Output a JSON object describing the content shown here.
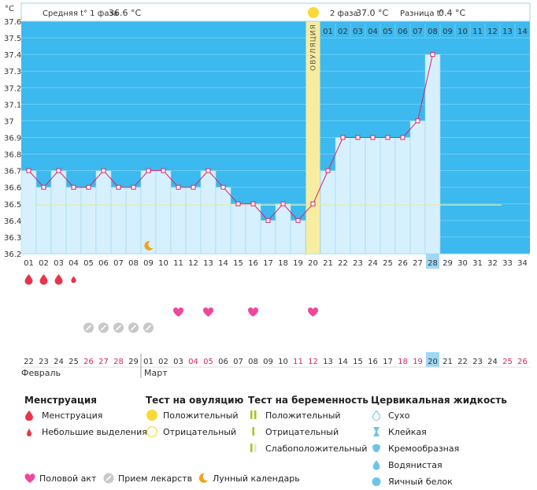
{
  "chart_data": {
    "type": "line",
    "unit_label": "°C",
    "ylim": [
      36.2,
      37.6
    ],
    "yticks": [
      "37.6",
      "37.5",
      "37.4",
      "37.3",
      "37.2",
      "37.1",
      "37",
      "36.9",
      "36.8",
      "36.7",
      "36.6",
      "36.5",
      "36.4",
      "36.3",
      "36.2"
    ],
    "cycle_days": [
      "01",
      "02",
      "03",
      "04",
      "05",
      "06",
      "07",
      "08",
      "09",
      "10",
      "11",
      "12",
      "13",
      "14",
      "15",
      "16",
      "17",
      "18",
      "19",
      "20",
      "21",
      "22",
      "23",
      "24",
      "25",
      "26",
      "27",
      "28",
      "29",
      "30",
      "31",
      "32",
      "33",
      "34"
    ],
    "today_cycle_day": "28",
    "temperatures": [
      36.7,
      36.6,
      36.7,
      36.6,
      36.6,
      36.7,
      36.6,
      36.6,
      36.7,
      36.7,
      36.6,
      36.6,
      36.7,
      36.6,
      36.5,
      36.5,
      36.4,
      36.5,
      36.4,
      36.5,
      36.7,
      36.9,
      36.9,
      36.9,
      36.9,
      36.9,
      37.0,
      37.4
    ],
    "ovulation_day": 20,
    "ovulation_label": "ОВУЛЯЦИЯ",
    "coverline": 36.5,
    "phase1_label": "Средняя t° 1 фаза",
    "phase1_value": "36.6 °C",
    "phase2_label": "2 фаза",
    "phase2_value": "37.0 °C",
    "diff_label": "Разница t°",
    "diff_value": "0.4 °C",
    "luteal_days": [
      "01",
      "02",
      "03",
      "04",
      "05",
      "06",
      "07",
      "08",
      "09",
      "10",
      "11",
      "12",
      "13",
      "14"
    ],
    "dates": [
      "22",
      "23",
      "24",
      "25",
      "26",
      "27",
      "28",
      "29",
      "01",
      "02",
      "03",
      "04",
      "05",
      "06",
      "07",
      "08",
      "09",
      "10",
      "11",
      "12",
      "13",
      "14",
      "15",
      "16",
      "17",
      "18",
      "19",
      "20",
      "21",
      "22",
      "23",
      "24",
      "25",
      "26"
    ],
    "weekend_date_indices": [
      4,
      5,
      6,
      11,
      12,
      18,
      19,
      25,
      26,
      32,
      33
    ],
    "today_date_index": 27,
    "month_labels": [
      {
        "index": 0,
        "label": "Февраль"
      },
      {
        "index": 8,
        "label": "Март"
      }
    ],
    "menstruation_days": [
      1,
      2,
      3
    ],
    "light_spotting_days": [
      4
    ],
    "intercourse_days": [
      11,
      13,
      16,
      20
    ],
    "medication_days": [
      5,
      6,
      7,
      8,
      9
    ],
    "moon_day": 9
  },
  "legend": {
    "menstruation": {
      "title": "Менструация",
      "items": [
        "Менструация",
        "Небольшие выделения"
      ]
    },
    "ovulation_test": {
      "title": "Тест на овуляцию",
      "items": [
        "Положительный",
        "Отрицательный"
      ]
    },
    "pregnancy_test": {
      "title": "Тест на беременность",
      "items": [
        "Положительный",
        "Отрицательный",
        "Слабоположительный"
      ]
    },
    "cervical_fluid": {
      "title": "Цервикальная жидкость",
      "items": [
        "Сухо",
        "Клейкая",
        "Кремообразная",
        "Водянистая",
        "Яичный белок"
      ]
    },
    "bottom": [
      "Половой акт",
      "Прием лекарств",
      "Лунный календарь"
    ]
  },
  "colors": {
    "sky": "#3cb9ee",
    "bar": "#d7f0fd",
    "bar_edge": "#9fd6f2",
    "line": "#d8256a",
    "ovulation_band": "#f7eca0",
    "ovulation_sun": "#fad83a",
    "coverline": "#eaea9c",
    "weekend": "#d8256a",
    "blood": "#e8344a",
    "heart": "#f0479a",
    "pill": "#c8c8c8",
    "moon": "#f0a31c",
    "today_cell": "#9fd8f4"
  }
}
